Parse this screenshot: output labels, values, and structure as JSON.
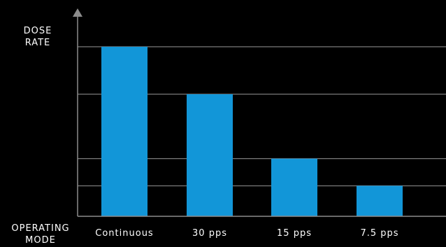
{
  "colors": {
    "background": "#000000",
    "bar": "#1296d8",
    "grid": "#9a9a9a",
    "axis": "#8c8c8c",
    "text": "#ffffff"
  },
  "chart_data": {
    "type": "bar",
    "title": "",
    "ylabel": [
      "DOSE",
      "RATE"
    ],
    "xlabel": [
      "OPERATING",
      "MODE"
    ],
    "categories": [
      "Continuous",
      "30 pps",
      "15 pps",
      "7.5 pps"
    ],
    "values": [
      100,
      72,
      34,
      18
    ],
    "ylim": [
      0,
      100
    ],
    "gridlines": [
      18,
      34,
      72,
      100
    ],
    "grid": true,
    "y_tick_labels": false,
    "legend": "none"
  }
}
